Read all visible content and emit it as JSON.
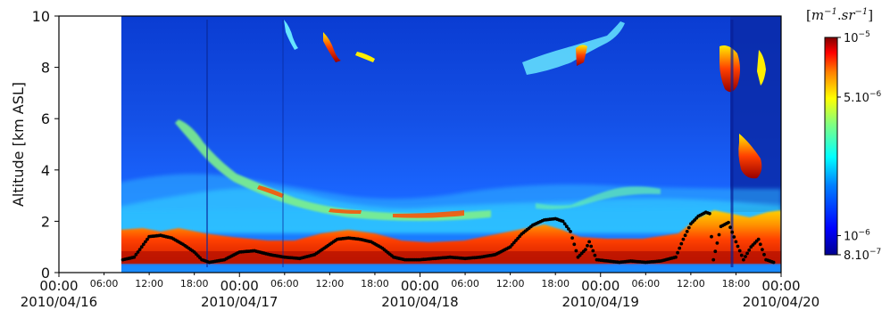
{
  "chart_data": {
    "type": "heatmap",
    "ylabel": "Altitude [km ASL]",
    "colorbar_label": "[m^{-1}.sr^{-1}]",
    "colorbar_label_parts": {
      "open": "[",
      "m": "m",
      "m_exp": "−1",
      "dot": ".",
      "sr": "sr",
      "sr_exp": "−1",
      "close": "]"
    },
    "y_range": [
      0,
      10
    ],
    "y_ticks": [
      "0",
      "2",
      "4",
      "6",
      "8",
      "10"
    ],
    "x_range_hours": [
      0,
      96
    ],
    "x_major_ticks": [
      {
        "hour": 0,
        "time": "00:00",
        "date": "2010/04/16"
      },
      {
        "hour": 24,
        "time": "00:00",
        "date": "2010/04/17"
      },
      {
        "hour": 48,
        "time": "00:00",
        "date": "2010/04/18"
      },
      {
        "hour": 72,
        "time": "00:00",
        "date": "2010/04/19"
      },
      {
        "hour": 96,
        "time": "00:00",
        "date": "2010/04/20"
      }
    ],
    "x_minor_ticks": [
      {
        "hour": 6,
        "label": "06:00"
      },
      {
        "hour": 12,
        "label": "12:00"
      },
      {
        "hour": 18,
        "label": "18:00"
      },
      {
        "hour": 30,
        "label": "06:00"
      },
      {
        "hour": 36,
        "label": "12:00"
      },
      {
        "hour": 42,
        "label": "18:00"
      },
      {
        "hour": 54,
        "label": "06:00"
      },
      {
        "hour": 60,
        "label": "12:00"
      },
      {
        "hour": 66,
        "label": "18:00"
      },
      {
        "hour": 78,
        "label": "06:00"
      },
      {
        "hour": 84,
        "label": "12:00"
      },
      {
        "hour": 90,
        "label": "18:00"
      }
    ],
    "data_start_hour": 8.3,
    "colorbar": {
      "scale": "log",
      "range": [
        8e-07,
        1e-05
      ],
      "ticks": [
        {
          "value": 1e-05,
          "mant": "10",
          "exp": "−5"
        },
        {
          "value": 5e-06,
          "mant": "5.10",
          "exp": "−6"
        },
        {
          "value": 1e-06,
          "mant": "10",
          "exp": "−6"
        },
        {
          "value": 8e-07,
          "mant": "8.10",
          "exp": "−7"
        }
      ]
    },
    "boundary_layer_height_km": [
      [
        8.5,
        0.5
      ],
      [
        10,
        0.6
      ],
      [
        11,
        1.0
      ],
      [
        12,
        1.4
      ],
      [
        13.5,
        1.45
      ],
      [
        15,
        1.35
      ],
      [
        16.5,
        1.1
      ],
      [
        18,
        0.8
      ],
      [
        19,
        0.5
      ],
      [
        20,
        0.4
      ],
      [
        22,
        0.5
      ],
      [
        24,
        0.8
      ],
      [
        26,
        0.85
      ],
      [
        28,
        0.7
      ],
      [
        30,
        0.6
      ],
      [
        32,
        0.55
      ],
      [
        34,
        0.7
      ],
      [
        36,
        1.1
      ],
      [
        37,
        1.3
      ],
      [
        38.5,
        1.35
      ],
      [
        40,
        1.3
      ],
      [
        41.5,
        1.2
      ],
      [
        43,
        0.95
      ],
      [
        44.5,
        0.6
      ],
      [
        46,
        0.5
      ],
      [
        48,
        0.5
      ],
      [
        50,
        0.55
      ],
      [
        52,
        0.6
      ],
      [
        54,
        0.55
      ],
      [
        56,
        0.6
      ],
      [
        58,
        0.7
      ],
      [
        60,
        1.0
      ],
      [
        61.5,
        1.5
      ],
      [
        63,
        1.85
      ],
      [
        64.5,
        2.05
      ],
      [
        66,
        2.1
      ],
      [
        67,
        2.0
      ],
      [
        68,
        1.6
      ],
      [
        69,
        0.6
      ],
      [
        70,
        0.9
      ],
      [
        70.5,
        1.2
      ],
      [
        71.5,
        0.5
      ],
      [
        73,
        0.45
      ],
      [
        74.5,
        0.4
      ],
      [
        76,
        0.45
      ],
      [
        78,
        0.4
      ],
      [
        80,
        0.45
      ],
      [
        82,
        0.6
      ],
      [
        83,
        1.3
      ],
      [
        84,
        1.9
      ],
      [
        85,
        2.2
      ],
      [
        86,
        2.35
      ],
      [
        86.5,
        2.3
      ],
      [
        87,
        0.5
      ],
      [
        88,
        1.8
      ],
      [
        89,
        1.95
      ],
      [
        90,
        1.2
      ],
      [
        91,
        0.5
      ],
      [
        92,
        1.0
      ],
      [
        93,
        1.3
      ],
      [
        94,
        0.5
      ],
      [
        95,
        0.4
      ]
    ]
  }
}
